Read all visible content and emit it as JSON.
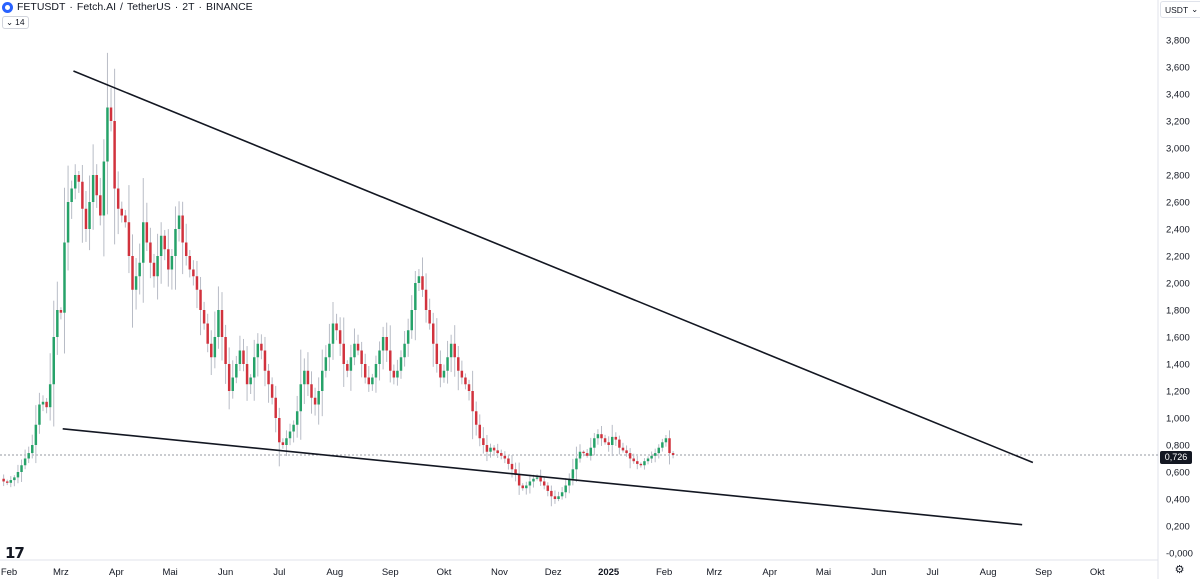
{
  "header": {
    "symbol": "FETUSDT",
    "name": "Fetch.AI",
    "quote": "TetherUS",
    "interval": "2T",
    "exchange": "BINANCE",
    "separator_1": "·",
    "separator_2": "/",
    "separator_3": "·",
    "separator_4": "·"
  },
  "indicator_pill": {
    "chevron": "⌄",
    "value": "14"
  },
  "currency_button": {
    "label": "USDT",
    "chevron": "⌄"
  },
  "last_price_label": "0,726",
  "colors": {
    "up": "#26a269",
    "down": "#d1323d",
    "wick": "#b8bcc6",
    "trendline": "#131722",
    "price_line": "#9598a1",
    "grid": "#f0f3fa"
  },
  "icons": {
    "logo": "tradingview-logo-icon",
    "settings": "settings-icon"
  },
  "logo_glyph": "17",
  "settings_glyph": "⚙",
  "chart_data": {
    "type": "candlestick",
    "title": "",
    "xlabel": "",
    "ylabel": "",
    "y_scale": "linear",
    "ylim": [
      -0.1,
      3.95
    ],
    "grid": false,
    "y_tick_labels": [
      "-0,000",
      "0,200",
      "0,400",
      "0,600",
      "0,800",
      "1,000",
      "1,200",
      "1,400",
      "1,600",
      "1,800",
      "2,000",
      "2,200",
      "2,400",
      "2,600",
      "2,800",
      "3,000",
      "3,200",
      "3,400",
      "3,600",
      "3,800"
    ],
    "y_tick_values": [
      0.0,
      0.2,
      0.4,
      0.6,
      0.8,
      1.0,
      1.2,
      1.4,
      1.6,
      1.8,
      2.0,
      2.2,
      2.4,
      2.6,
      2.8,
      3.0,
      3.2,
      3.4,
      3.6,
      3.8
    ],
    "x_tick_labels": [
      "Feb",
      "Mrz",
      "Apr",
      "Mai",
      "Jun",
      "Jul",
      "Aug",
      "Sep",
      "Okt",
      "Nov",
      "Dez",
      "2025",
      "Feb",
      "Mrz",
      "Apr",
      "Mai",
      "Jun",
      "Jul",
      "Aug",
      "Sep",
      "Okt"
    ],
    "x_tick_dates": [
      "2024-02-01",
      "2024-03-01",
      "2024-04-01",
      "2024-05-01",
      "2024-06-01",
      "2024-07-01",
      "2024-08-01",
      "2024-09-01",
      "2024-10-01",
      "2024-11-01",
      "2024-12-01",
      "2025-01-01",
      "2025-02-01",
      "2025-03-01",
      "2025-04-01",
      "2025-05-01",
      "2025-06-01",
      "2025-07-01",
      "2025-08-01",
      "2025-09-01",
      "2025-10-01"
    ],
    "x_tick_bold": [
      false,
      false,
      false,
      false,
      false,
      false,
      false,
      false,
      false,
      false,
      false,
      true,
      false,
      false,
      false,
      false,
      false,
      false,
      false,
      false,
      false
    ],
    "last_price": 0.726,
    "bar_interval_days": 2,
    "close_series": {
      "start_date": "2024-01-27",
      "step_days": 2,
      "closes": [
        0.55,
        0.53,
        0.52,
        0.54,
        0.56,
        0.6,
        0.65,
        0.7,
        0.74,
        0.8,
        0.95,
        1.1,
        1.12,
        1.08,
        1.25,
        1.6,
        1.8,
        1.78,
        2.3,
        2.6,
        2.7,
        2.8,
        2.75,
        2.55,
        2.4,
        2.6,
        2.8,
        2.65,
        2.5,
        2.9,
        3.3,
        3.2,
        2.7,
        2.55,
        2.5,
        2.45,
        2.2,
        1.95,
        2.05,
        2.15,
        2.45,
        2.3,
        2.15,
        2.05,
        2.2,
        2.35,
        2.25,
        2.1,
        2.2,
        2.4,
        2.5,
        2.3,
        2.2,
        2.1,
        2.05,
        1.95,
        1.8,
        1.7,
        1.55,
        1.45,
        1.6,
        1.8,
        1.6,
        1.4,
        1.2,
        1.3,
        1.4,
        1.5,
        1.4,
        1.25,
        1.3,
        1.45,
        1.55,
        1.5,
        1.35,
        1.25,
        1.15,
        1.0,
        0.82,
        0.8,
        0.85,
        0.9,
        0.95,
        1.05,
        1.25,
        1.35,
        1.25,
        1.15,
        1.1,
        1.2,
        1.35,
        1.45,
        1.55,
        1.7,
        1.65,
        1.55,
        1.4,
        1.35,
        1.45,
        1.55,
        1.5,
        1.4,
        1.3,
        1.25,
        1.3,
        1.4,
        1.5,
        1.6,
        1.5,
        1.35,
        1.3,
        1.35,
        1.45,
        1.55,
        1.65,
        1.8,
        2.0,
        2.05,
        1.95,
        1.8,
        1.7,
        1.55,
        1.4,
        1.3,
        1.35,
        1.45,
        1.55,
        1.45,
        1.35,
        1.3,
        1.25,
        1.2,
        1.05,
        0.95,
        0.85,
        0.8,
        0.75,
        0.78,
        0.76,
        0.74,
        0.72,
        0.7,
        0.66,
        0.62,
        0.58,
        0.5,
        0.48,
        0.5,
        0.53,
        0.55,
        0.56,
        0.53,
        0.5,
        0.46,
        0.42,
        0.4,
        0.42,
        0.45,
        0.5,
        0.55,
        0.62,
        0.7,
        0.75,
        0.74,
        0.72,
        0.78,
        0.85,
        0.88,
        0.85,
        0.82,
        0.8,
        0.86,
        0.84,
        0.78,
        0.76,
        0.74,
        0.7,
        0.68,
        0.66,
        0.65,
        0.68,
        0.7,
        0.72,
        0.74,
        0.78,
        0.82,
        0.85,
        0.74,
        0.726
      ]
    },
    "trendlines": [
      {
        "name": "",
        "start": {
          "date": "2024-03-08",
          "price": 3.57
        },
        "end": {
          "date": "2025-08-26",
          "price": 0.67
        }
      },
      {
        "name": "",
        "start": {
          "date": "2024-03-02",
          "price": 0.92
        },
        "end": {
          "date": "2025-08-20",
          "price": 0.21
        }
      }
    ]
  }
}
